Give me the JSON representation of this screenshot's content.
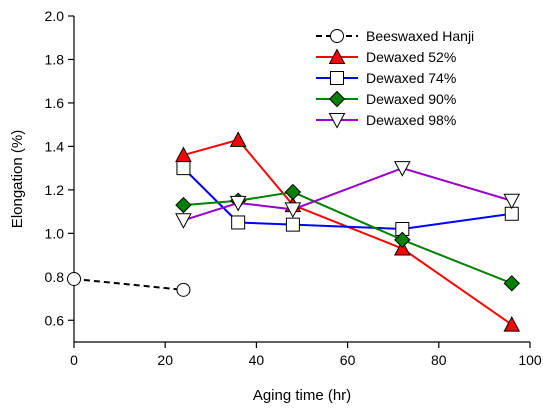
{
  "chart_data": {
    "type": "line",
    "xlabel": "Aging  time (hr)",
    "ylabel": "Elongation (%)",
    "xlim": [
      0,
      100
    ],
    "ylim": [
      0.5,
      2.0
    ],
    "x_ticks": [
      0,
      20,
      40,
      60,
      80,
      100
    ],
    "y_ticks": [
      0.6,
      0.8,
      1.0,
      1.2,
      1.4,
      1.6,
      1.8,
      2.0
    ],
    "x_tick_labels": [
      "0",
      "20",
      "40",
      "60",
      "80",
      "100"
    ],
    "y_tick_labels": [
      "0.6",
      "0.8",
      "1.0",
      "1.2",
      "1.4",
      "1.6",
      "1.8",
      "2.0"
    ],
    "grid": false,
    "legend_position": "top-right",
    "series": [
      {
        "name": "Beeswaxed Hanji",
        "color": "#000000",
        "marker": "circle",
        "line": "dashed",
        "x": [
          0,
          24
        ],
        "y": [
          0.79,
          0.74
        ]
      },
      {
        "name": "Dewaxed 52%",
        "color": "#ff0000",
        "marker": "triangle-up",
        "line": "solid",
        "x": [
          24,
          36,
          48,
          72,
          96
        ],
        "y": [
          1.36,
          1.43,
          1.13,
          0.93,
          0.58
        ]
      },
      {
        "name": "Dewaxed 74%",
        "color": "#0000ff",
        "marker": "square",
        "line": "solid",
        "x": [
          24,
          36,
          48,
          72,
          96
        ],
        "y": [
          1.3,
          1.05,
          1.04,
          1.02,
          1.09
        ]
      },
      {
        "name": "Dewaxed 90%",
        "color": "#008000",
        "marker": "diamond",
        "line": "solid",
        "x": [
          24,
          36,
          48,
          72,
          96
        ],
        "y": [
          1.13,
          1.15,
          1.19,
          0.97,
          0.77
        ]
      },
      {
        "name": "Dewaxed 98%",
        "color": "#9900cc",
        "marker": "triangle-down",
        "line": "solid",
        "x": [
          24,
          36,
          48,
          72,
          96
        ],
        "y": [
          1.06,
          1.14,
          1.11,
          1.3,
          1.15
        ]
      }
    ]
  }
}
